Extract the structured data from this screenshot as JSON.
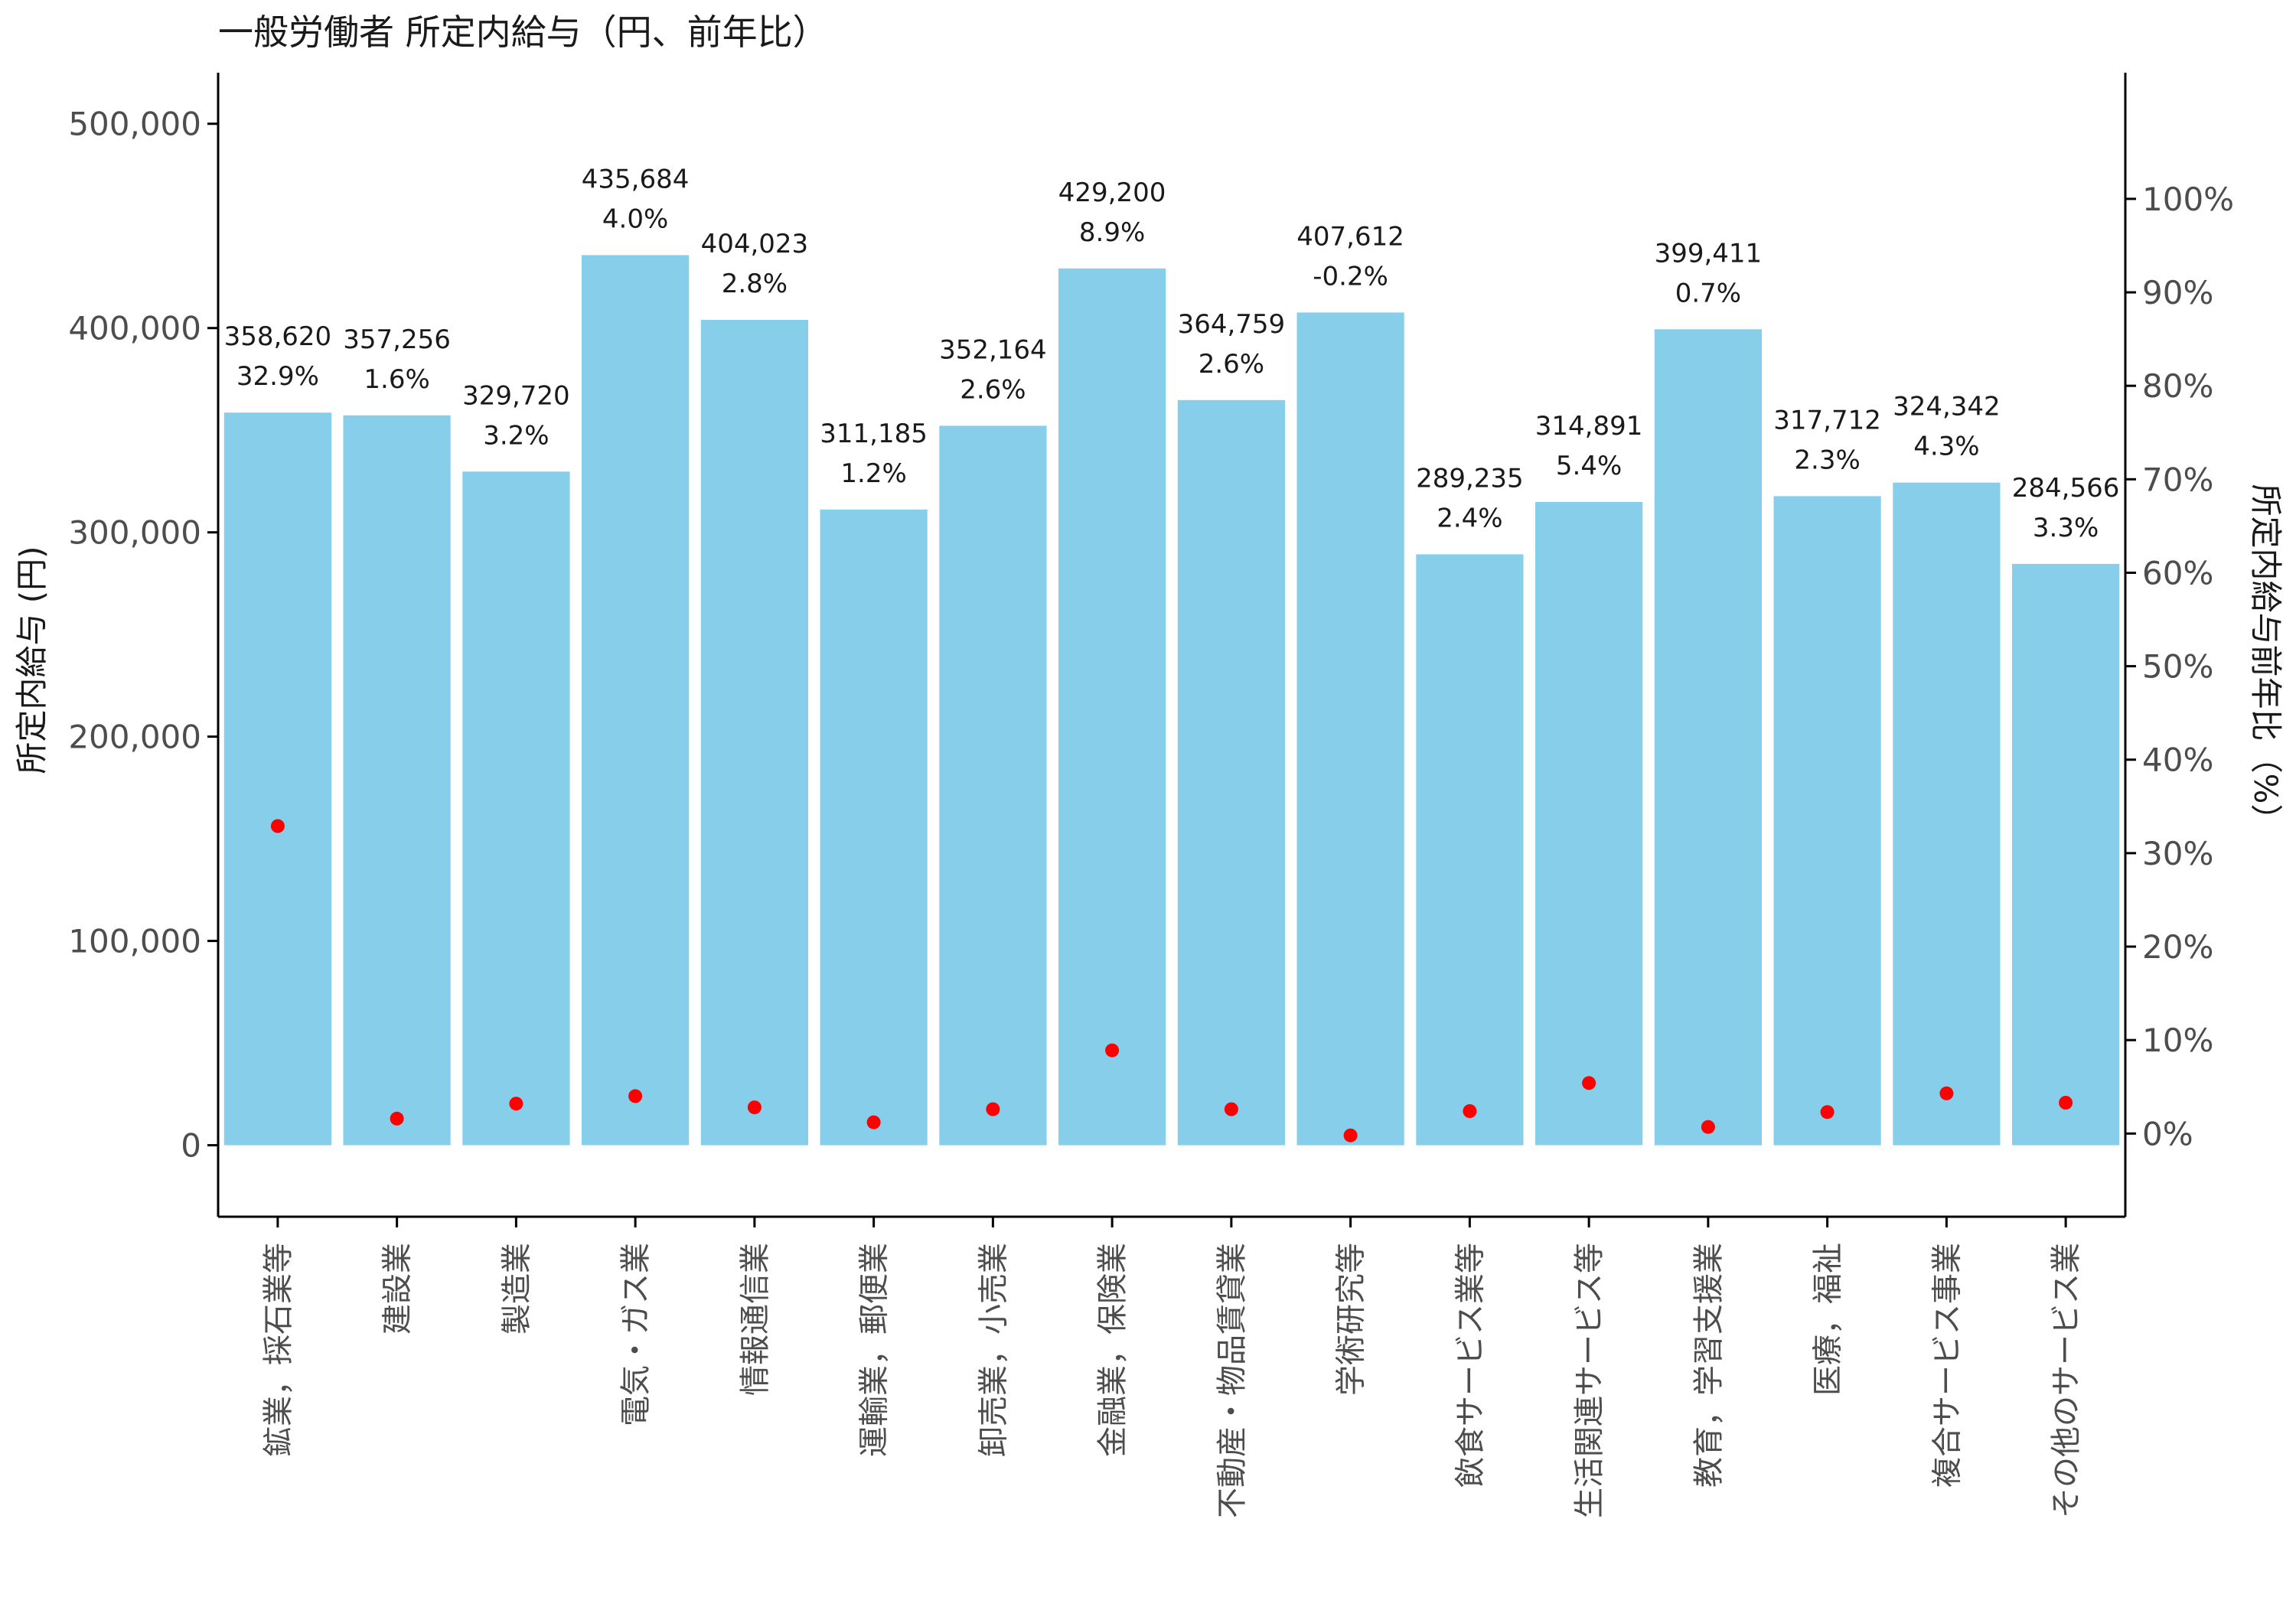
{
  "chart_data": {
    "type": "bar",
    "title": "一般労働者 所定内給与（円、前年比）",
    "ylabel": "所定内給与 (円)",
    "y2label": "所定内給与前年比（%）",
    "ylim": [
      -35000,
      525000
    ],
    "yticks": [
      0,
      100000,
      200000,
      300000,
      400000,
      500000
    ],
    "yticklabels": [
      "0",
      "100,000",
      "200,000",
      "300,000",
      "400,000",
      "500,000"
    ],
    "y2lim": [
      -8.9,
      113.5
    ],
    "y2ticks": [
      0,
      10,
      20,
      30,
      40,
      50,
      60,
      70,
      80,
      90,
      100
    ],
    "y2ticklabels": [
      "0%",
      "10%",
      "20%",
      "30%",
      "40%",
      "50%",
      "60%",
      "70%",
      "80%",
      "90%",
      "100%"
    ],
    "categories": [
      "鉱業，採石業等",
      "建設業",
      "製造業",
      "電気・ガス業",
      "情報通信業",
      "運輸業，郵便業",
      "卸売業，小売業",
      "金融業，保険業",
      "不動産・物品賃貸業",
      "学術研究等",
      "飲食サービス業等",
      "生活関連サービス等",
      "教育，学習支援業",
      "医療，福祉",
      "複合サービス事業",
      "その他のサービス業"
    ],
    "series": [
      {
        "kind": "bar",
        "axis": "left",
        "values": [
          358620,
          357256,
          329720,
          435684,
          404023,
          311185,
          352164,
          429200,
          364759,
          407612,
          289235,
          314891,
          399411,
          317712,
          324342,
          284566
        ],
        "labels": [
          "358,620",
          "357,256",
          "329,720",
          "435,684",
          "404,023",
          "311,185",
          "352,164",
          "429,200",
          "364,759",
          "407,612",
          "289,235",
          "314,891",
          "399,411",
          "317,712",
          "324,342",
          "284,566"
        ]
      },
      {
        "kind": "point",
        "axis": "right",
        "values": [
          32.9,
          1.6,
          3.2,
          4.0,
          2.8,
          1.2,
          2.6,
          8.9,
          2.6,
          -0.2,
          2.4,
          5.4,
          0.7,
          2.3,
          4.3,
          3.3
        ],
        "labels": [
          "32.9%",
          "1.6%",
          "3.2%",
          "4.0%",
          "2.8%",
          "1.2%",
          "2.6%",
          "8.9%",
          "2.6%",
          "-0.2%",
          "2.4%",
          "5.4%",
          "0.7%",
          "2.3%",
          "4.3%",
          "3.3%"
        ]
      }
    ],
    "colors": {
      "bar": "#87CEEB",
      "point": "#FF0000",
      "axis": "#000000"
    },
    "grid": false,
    "legend": "none"
  }
}
